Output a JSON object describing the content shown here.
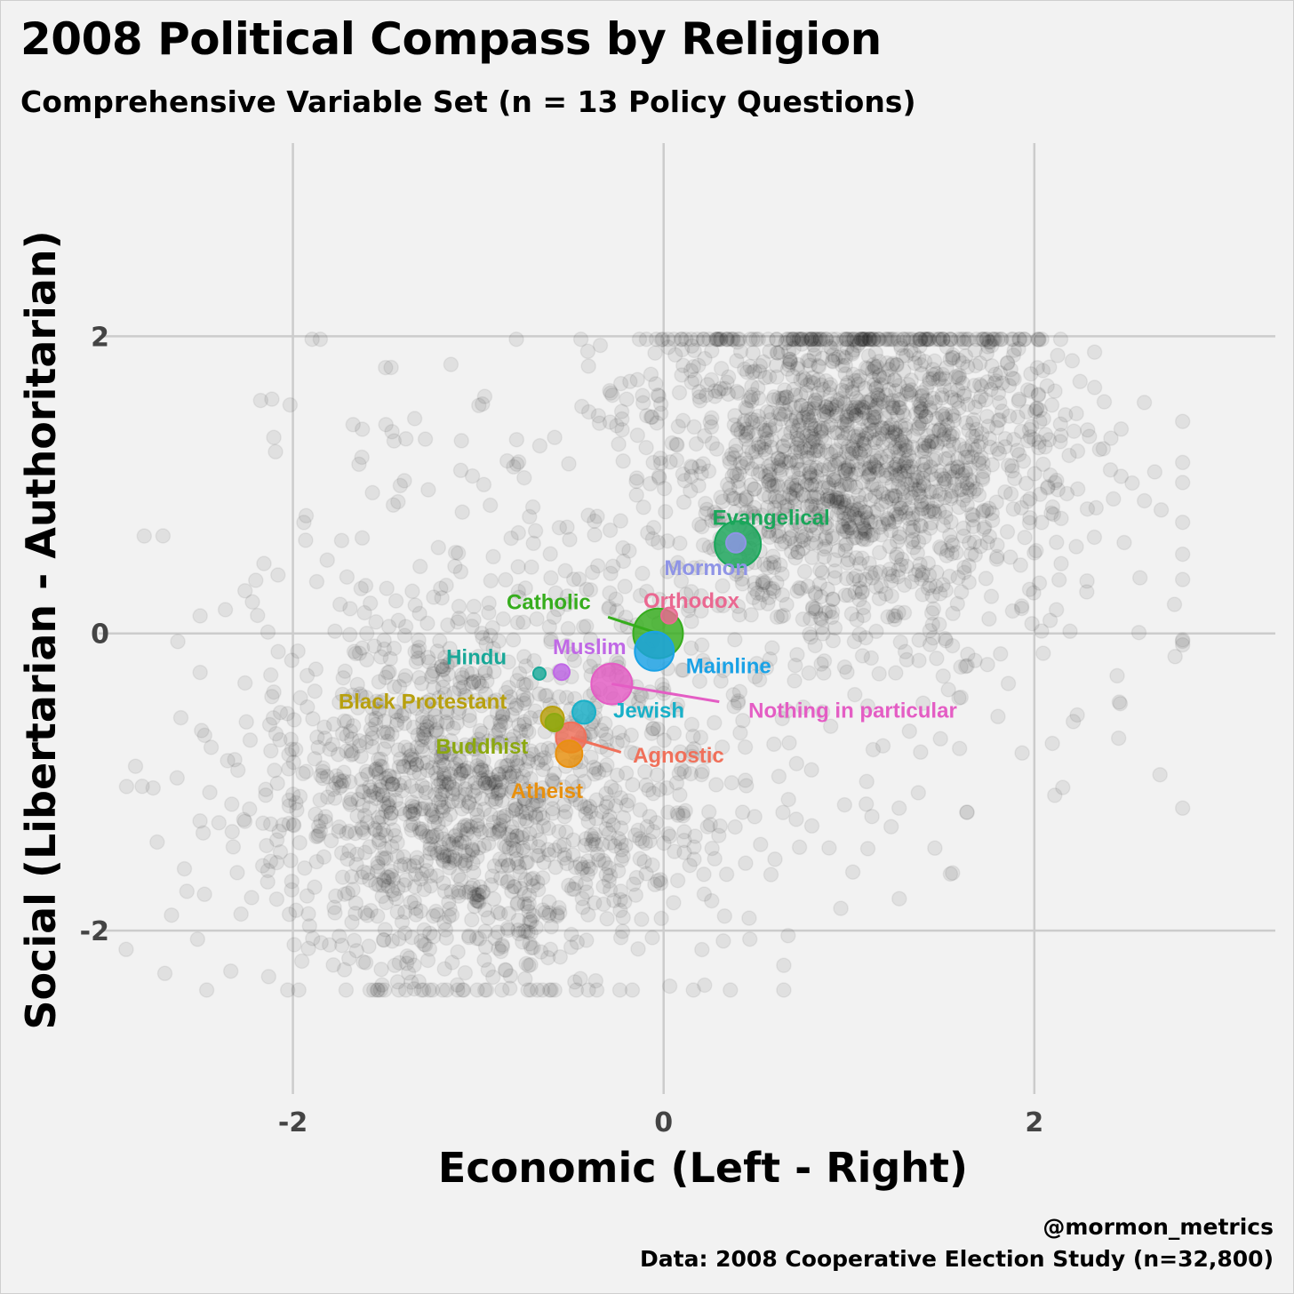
{
  "title": "2008 Political Compass by Religion",
  "subtitle": "Comprehensive Variable Set (n = 13 Policy Questions)",
  "caption": {
    "line1": "@mormon_metrics",
    "line2": "Data: 2008 Cooperative Election Study (n=32,800)"
  },
  "chart_data": {
    "type": "scatter",
    "title": "2008 Political Compass by Religion",
    "subtitle": "Comprehensive Variable Set (n = 13 Policy Questions)",
    "xlabel": "Economic (Left - Right)",
    "ylabel": "Social (Libertarian - Authoritarian)",
    "xlim": [
      -3.0,
      3.3
    ],
    "ylim": [
      -3.1,
      3.3
    ],
    "xticks": [
      -2,
      0,
      2
    ],
    "yticks": [
      -2,
      0,
      2
    ],
    "xtick_labels": [
      "-2",
      "0",
      "2"
    ],
    "ytick_labels": [
      "-2",
      "0",
      "2"
    ],
    "grid": true,
    "background_points": {
      "description": "individual respondents, semi-transparent black",
      "color": "#000000",
      "opacity": 0.07,
      "count_rendered": 3400
    },
    "groups": [
      {
        "name": "Evangelical",
        "x": 0.4,
        "y": 0.6,
        "color": "#1aa65a",
        "label": "Evangelical",
        "label_x": 0.58,
        "label_y": 0.78
      },
      {
        "name": "Mormon",
        "x": 0.39,
        "y": 0.61,
        "color": "#8f94e6",
        "label": "Mormon",
        "label_x": 0.23,
        "label_y": 0.44
      },
      {
        "name": "Orthodox",
        "x": 0.03,
        "y": 0.12,
        "color": "#ea6891",
        "label": "Orthodox",
        "label_x": 0.15,
        "label_y": 0.22
      },
      {
        "name": "Catholic",
        "x": -0.03,
        "y": 0.0,
        "color": "#36ad1d",
        "label": "Catholic",
        "label_x": -0.62,
        "label_y": 0.21
      },
      {
        "name": "Mainline",
        "x": -0.05,
        "y": -0.12,
        "color": "#1aa2e6",
        "label": "Mainline",
        "label_x": 0.35,
        "label_y": -0.22
      },
      {
        "name": "Muslim",
        "x": -0.55,
        "y": -0.26,
        "color": "#c068e6",
        "label": "Muslim",
        "label_x": -0.4,
        "label_y": -0.09
      },
      {
        "name": "Hindu",
        "x": -0.67,
        "y": -0.27,
        "color": "#19a898",
        "label": "Hindu",
        "label_x": -1.01,
        "label_y": -0.16
      },
      {
        "name": "Nothing in particular",
        "x": -0.28,
        "y": -0.34,
        "color": "#e45dc4",
        "label": "Nothing in particular",
        "label_x": 1.02,
        "label_y": -0.52
      },
      {
        "name": "Black Protestant",
        "x": -0.6,
        "y": -0.57,
        "color": "#b8a00e",
        "label": "Black Protestant",
        "label_x": -1.3,
        "label_y": -0.46
      },
      {
        "name": "Jewish",
        "x": -0.43,
        "y": -0.53,
        "color": "#18b0c8",
        "label": "Jewish",
        "label_x": -0.08,
        "label_y": -0.52
      },
      {
        "name": "Buddhist",
        "x": -0.59,
        "y": -0.6,
        "color": "#8ca810",
        "label": "Buddhist",
        "label_x": -0.98,
        "label_y": -0.76
      },
      {
        "name": "Agnostic",
        "x": -0.5,
        "y": -0.7,
        "color": "#f0705a",
        "label": "Agnostic",
        "label_x": 0.08,
        "label_y": -0.82
      },
      {
        "name": "Atheist",
        "x": -0.51,
        "y": -0.81,
        "color": "#e8900e",
        "label": "Atheist",
        "label_x": -0.63,
        "label_y": -1.06
      }
    ]
  },
  "colors": {
    "background": "#f2f2f2",
    "grid": "#cccccc",
    "tick_text": "#444444"
  }
}
